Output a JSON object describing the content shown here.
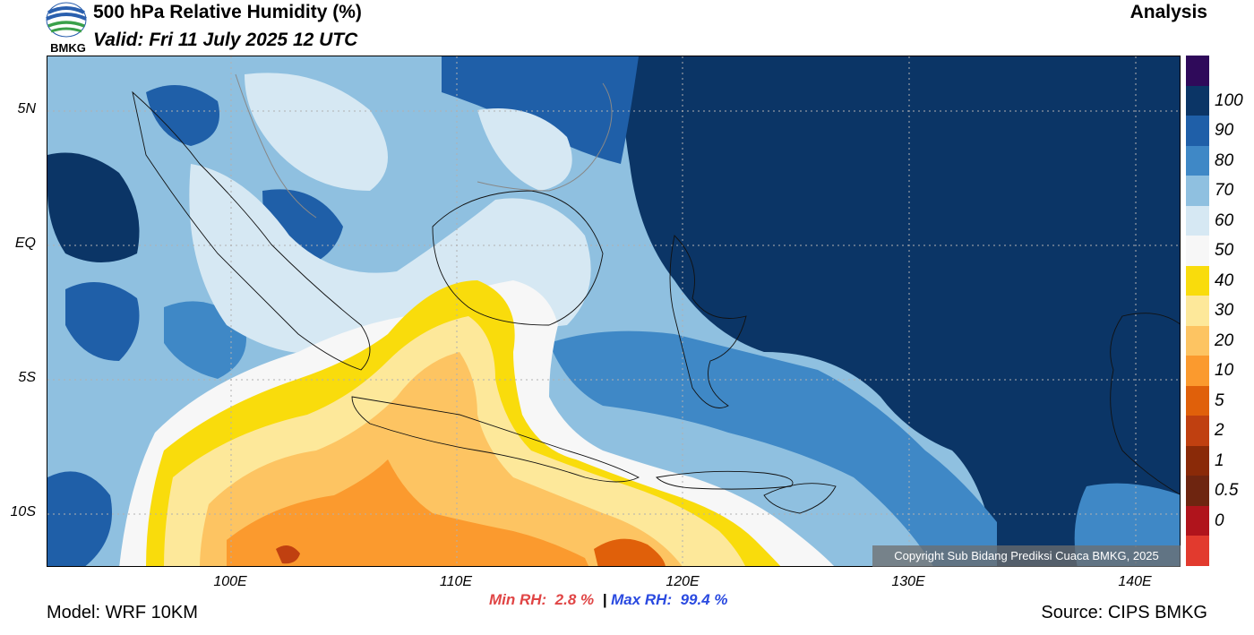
{
  "header": {
    "logo_text": "BMKG",
    "title": "500 hPa Relative Humidity (%)",
    "valid": "Valid: Fri 11 July 2025 12 UTC",
    "mode": "Analysis"
  },
  "map": {
    "lat_labels": [
      "5N",
      "EQ",
      "5S",
      "10S"
    ],
    "lon_labels": [
      "100E",
      "110E",
      "120E",
      "130E",
      "140E"
    ],
    "copyright": "Copyright Sub Bidang Prediksi Cuaca BMKG, 2025"
  },
  "colorbar": {
    "labels": [
      "100",
      "90",
      "80",
      "70",
      "60",
      "50",
      "40",
      "30",
      "20",
      "10",
      "5",
      "2",
      "1",
      "0.5",
      "0"
    ],
    "colors": [
      "#2f0a5a",
      "#0b3566",
      "#1f5fa8",
      "#3f88c6",
      "#8fc0e0",
      "#d6e8f3",
      "#f7f7f7",
      "#f9dc0c",
      "#fde89a",
      "#fdc462",
      "#fb9a2e",
      "#e0600a",
      "#c04010",
      "#8a2a08",
      "#6e2510",
      "#b0141c",
      "#e23a2e"
    ]
  },
  "stats": {
    "min_label": "Min RH:",
    "min_value": "2.8 %",
    "separator": "|",
    "max_label": "Max RH:",
    "max_value": "99.4 %"
  },
  "footer": {
    "model": "Model: WRF 10KM",
    "source": "Source: CIPS BMKG"
  }
}
